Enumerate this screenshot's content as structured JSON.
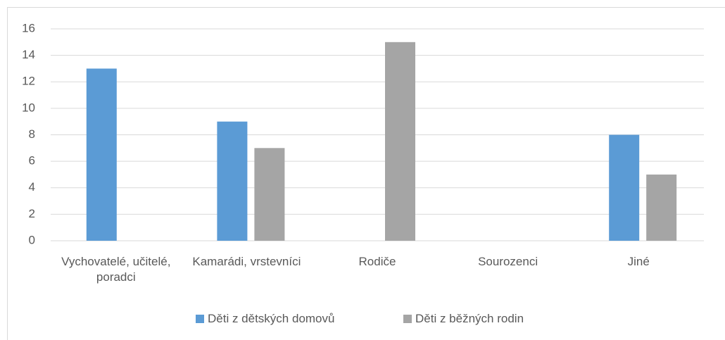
{
  "chart_data": {
    "type": "bar",
    "categories": [
      "Vychovatelé, učitelé, poradci",
      "Kamarádi, vrstevníci",
      "Rodiče",
      "Sourozenci",
      "Jiné"
    ],
    "series": [
      {
        "name": "Děti z dětských domovů",
        "color": "#5b9bd5",
        "values": [
          13,
          9,
          0,
          0,
          8
        ]
      },
      {
        "name": "Děti z běžných rodin",
        "color": "#a5a5a5",
        "values": [
          0,
          7,
          15,
          0,
          5
        ]
      }
    ],
    "ylim": [
      0,
      16
    ],
    "yticks": [
      0,
      2,
      4,
      6,
      8,
      10,
      12,
      14,
      16
    ],
    "grid": true,
    "legend": "bottom"
  }
}
